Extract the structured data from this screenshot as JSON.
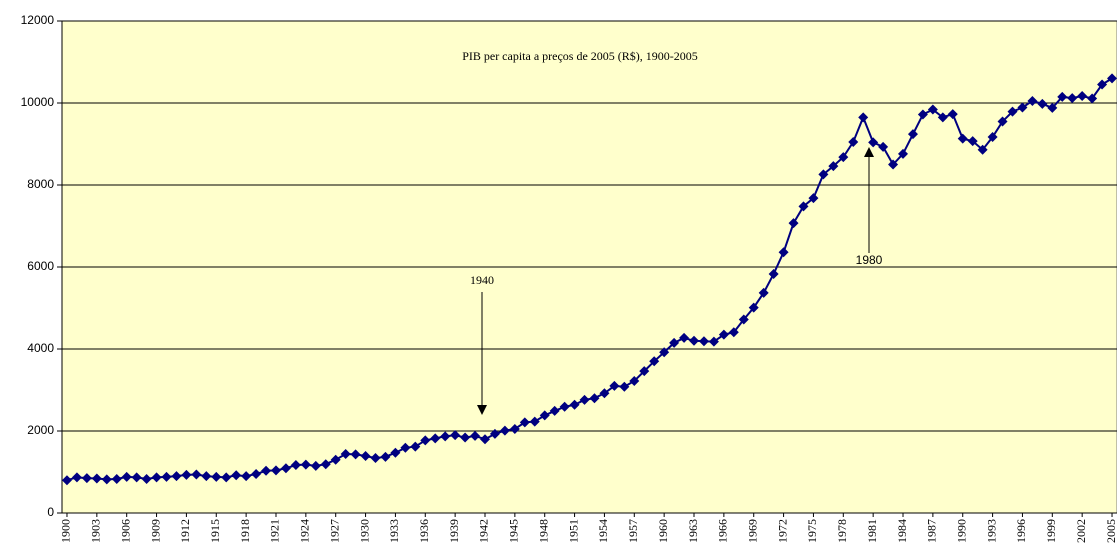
{
  "chart_data": {
    "type": "line",
    "title": "PIB per capita a preços de 2005 (R$), 1900-2005",
    "annotations": [
      {
        "text": "1940"
      },
      {
        "text": "1980"
      }
    ],
    "x": [
      1900,
      1901,
      1902,
      1903,
      1904,
      1905,
      1906,
      1907,
      1908,
      1909,
      1910,
      1911,
      1912,
      1913,
      1914,
      1915,
      1916,
      1917,
      1918,
      1919,
      1920,
      1921,
      1922,
      1923,
      1924,
      1925,
      1926,
      1927,
      1928,
      1929,
      1930,
      1931,
      1932,
      1933,
      1934,
      1935,
      1936,
      1937,
      1938,
      1939,
      1940,
      1941,
      1942,
      1943,
      1944,
      1945,
      1946,
      1947,
      1948,
      1949,
      1950,
      1951,
      1952,
      1953,
      1954,
      1955,
      1956,
      1957,
      1958,
      1959,
      1960,
      1961,
      1962,
      1963,
      1964,
      1965,
      1966,
      1967,
      1968,
      1969,
      1970,
      1971,
      1972,
      1973,
      1974,
      1975,
      1976,
      1977,
      1978,
      1979,
      1980,
      1981,
      1982,
      1983,
      1984,
      1985,
      1986,
      1987,
      1988,
      1989,
      1990,
      1991,
      1992,
      1993,
      1994,
      1995,
      1996,
      1997,
      1998,
      1999,
      2000,
      2001,
      2002,
      2003,
      2004,
      2005
    ],
    "series": [
      {
        "color": "#000080",
        "values": [
          800,
          870,
          850,
          840,
          820,
          830,
          880,
          870,
          830,
          870,
          880,
          900,
          930,
          940,
          900,
          880,
          870,
          920,
          900,
          950,
          1030,
          1040,
          1090,
          1170,
          1180,
          1150,
          1190,
          1300,
          1440,
          1430,
          1390,
          1340,
          1370,
          1470,
          1590,
          1620,
          1770,
          1820,
          1870,
          1900,
          1840,
          1880,
          1800,
          1930,
          2010,
          2050,
          2210,
          2230,
          2380,
          2490,
          2590,
          2640,
          2760,
          2800,
          2920,
          3100,
          3080,
          3220,
          3460,
          3700,
          3920,
          4150,
          4270,
          4200,
          4190,
          4180,
          4350,
          4410,
          4720,
          5010,
          5370,
          5830,
          6360,
          7070,
          7480,
          7680,
          8260,
          8460,
          8680,
          9050,
          9650,
          9040,
          8930,
          8500,
          8760,
          9240,
          9720,
          9840,
          9650,
          9730,
          9130,
          9070,
          8860,
          9170,
          9550,
          9790,
          9890,
          10050,
          9980,
          9880,
          10150,
          10120,
          10170,
          10110,
          10450,
          10600
        ]
      }
    ],
    "xlim": [
      1899.5,
      2005.5
    ],
    "xticks": [
      1900,
      1903,
      1906,
      1909,
      1912,
      1915,
      1918,
      1921,
      1924,
      1927,
      1930,
      1933,
      1936,
      1939,
      1942,
      1945,
      1948,
      1951,
      1954,
      1957,
      1960,
      1963,
      1966,
      1969,
      1972,
      1975,
      1978,
      1981,
      1984,
      1987,
      1990,
      1993,
      1996,
      1999,
      2002,
      2005
    ],
    "ylim": [
      0,
      12000
    ],
    "yticks": [
      0,
      2000,
      4000,
      6000,
      8000,
      10000,
      12000
    ],
    "grid": true,
    "plot_background": "#FFFFCC"
  }
}
